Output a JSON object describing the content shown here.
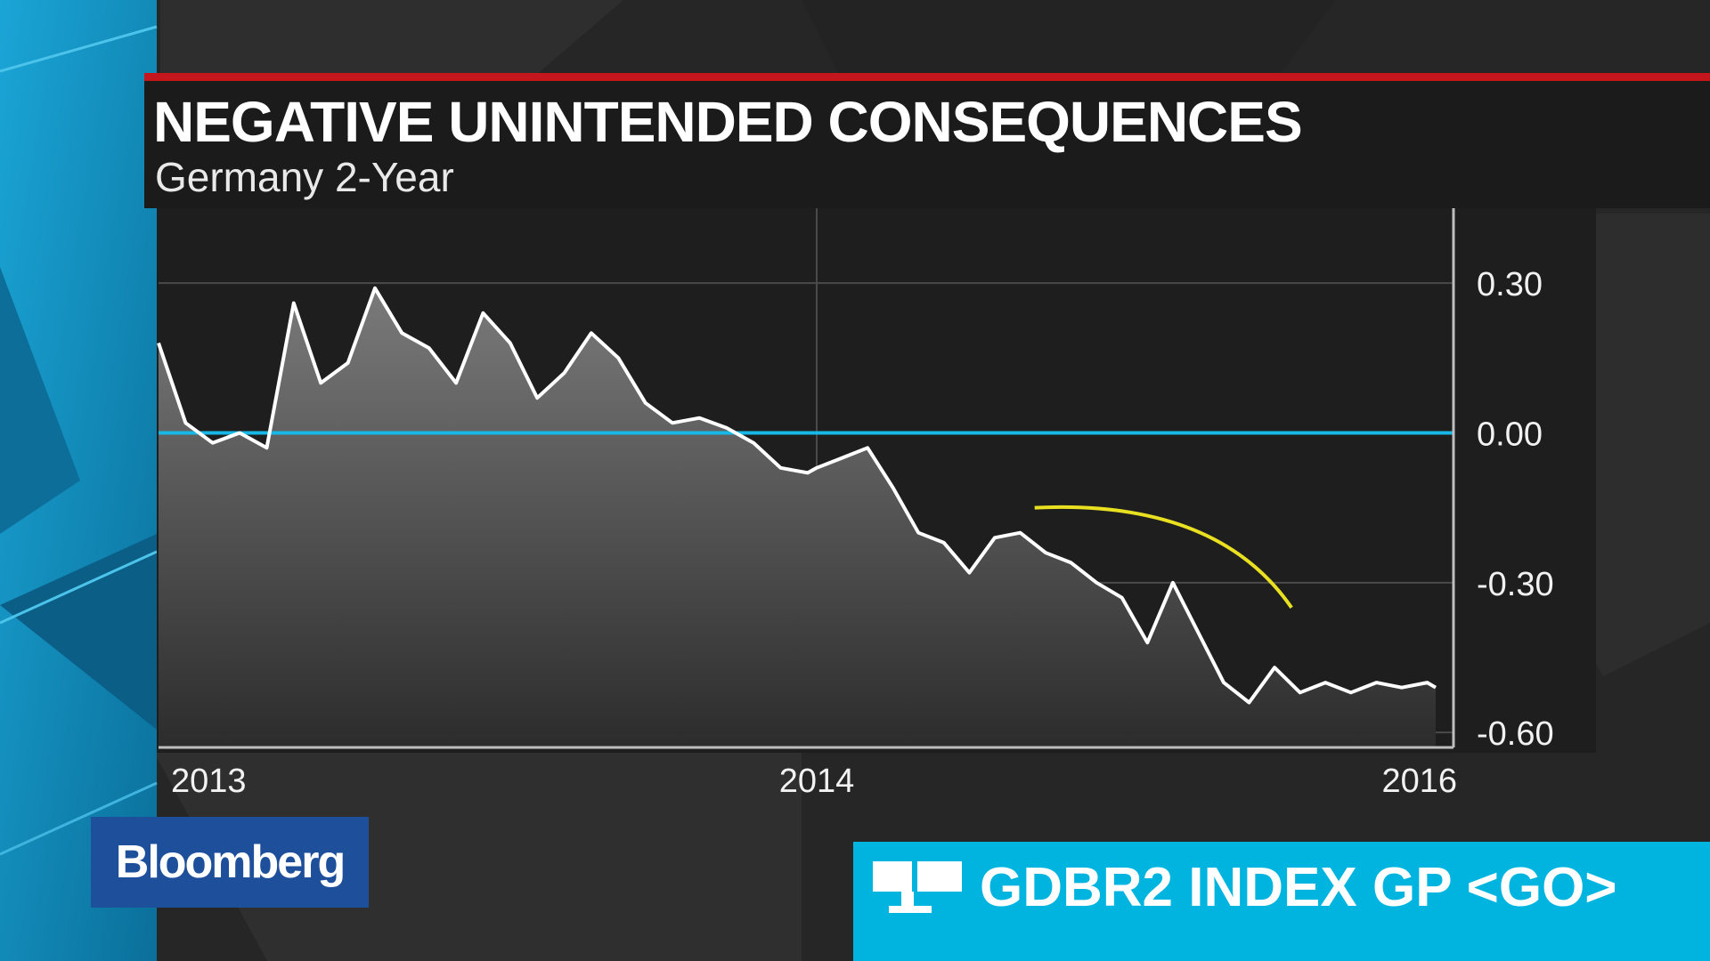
{
  "header": {
    "title": "NEGATIVE UNINTENDED CONSEQUENCES",
    "subtitle": "Germany 2-Year"
  },
  "brand": {
    "logo_text": "Bloomberg",
    "color": "#1e4f9b"
  },
  "ticker": {
    "code": "GDBR2 INDEX GP <GO>",
    "icon": "terminal-monitors-icon",
    "color": "#00b4e0"
  },
  "colors": {
    "accent_red": "#c4161c",
    "zero_line": "#16b8e6",
    "highlight_curve": "#e8e020",
    "series_line": "#ffffff"
  },
  "chart_data": {
    "type": "area",
    "title": "NEGATIVE UNINTENDED CONSEQUENCES",
    "subtitle": "Germany 2-Year",
    "xlabel": "",
    "ylabel": "",
    "x_tick_labels": [
      "2013",
      "2014",
      "2016"
    ],
    "y_tick_labels": [
      "0.30",
      "0.00",
      "-0.30",
      "-0.60"
    ],
    "y_ticks": [
      0.3,
      0.0,
      -0.3,
      -0.6
    ],
    "ylim": [
      -0.63,
      0.45
    ],
    "xlim": [
      "2013-01-01",
      "2016-01-01"
    ],
    "axis_position": "right",
    "grid": true,
    "reference_line": {
      "y": 0.0,
      "color": "#16b8e6"
    },
    "annotation": "yellow-curve-highlighting-decline",
    "series": [
      {
        "x": [
          "2013-01-01",
          "2013-01-16",
          "2013-01-31",
          "2013-02-15",
          "2013-03-02",
          "2013-03-17",
          "2013-04-01",
          "2013-04-16",
          "2013-05-01",
          "2013-05-16",
          "2013-05-31",
          "2013-06-15",
          "2013-06-30",
          "2013-07-15",
          "2013-07-30",
          "2013-08-14",
          "2013-08-29",
          "2013-09-13",
          "2013-09-28",
          "2013-10-13",
          "2013-10-28",
          "2013-11-12",
          "2013-11-27",
          "2013-12-12",
          "2013-12-27",
          "2014-01-01",
          "2014-01-31",
          "2014-03-02",
          "2014-04-01",
          "2014-05-01",
          "2014-05-31",
          "2014-06-30",
          "2014-07-30",
          "2014-08-29",
          "2014-09-28",
          "2014-10-28",
          "2014-11-27",
          "2014-12-27",
          "2015-01-26",
          "2015-02-25",
          "2015-03-27",
          "2015-04-26",
          "2015-05-26",
          "2015-06-25",
          "2015-07-25",
          "2015-08-24",
          "2015-09-23",
          "2015-10-23",
          "2015-11-22",
          "2015-12-22",
          "2016-01-01"
        ],
        "values": [
          0.18,
          0.02,
          -0.02,
          0.0,
          -0.03,
          0.26,
          0.1,
          0.14,
          0.29,
          0.2,
          0.17,
          0.1,
          0.24,
          0.18,
          0.07,
          0.12,
          0.2,
          0.15,
          0.06,
          0.02,
          0.03,
          0.01,
          -0.02,
          -0.07,
          -0.08,
          -0.07,
          -0.05,
          -0.03,
          -0.11,
          -0.2,
          -0.22,
          -0.28,
          -0.21,
          -0.2,
          -0.24,
          -0.26,
          -0.3,
          -0.33,
          -0.42,
          -0.3,
          -0.4,
          -0.5,
          -0.54,
          -0.47,
          -0.52,
          -0.5,
          -0.52,
          -0.5,
          -0.51,
          -0.5,
          -0.51
        ]
      }
    ]
  }
}
